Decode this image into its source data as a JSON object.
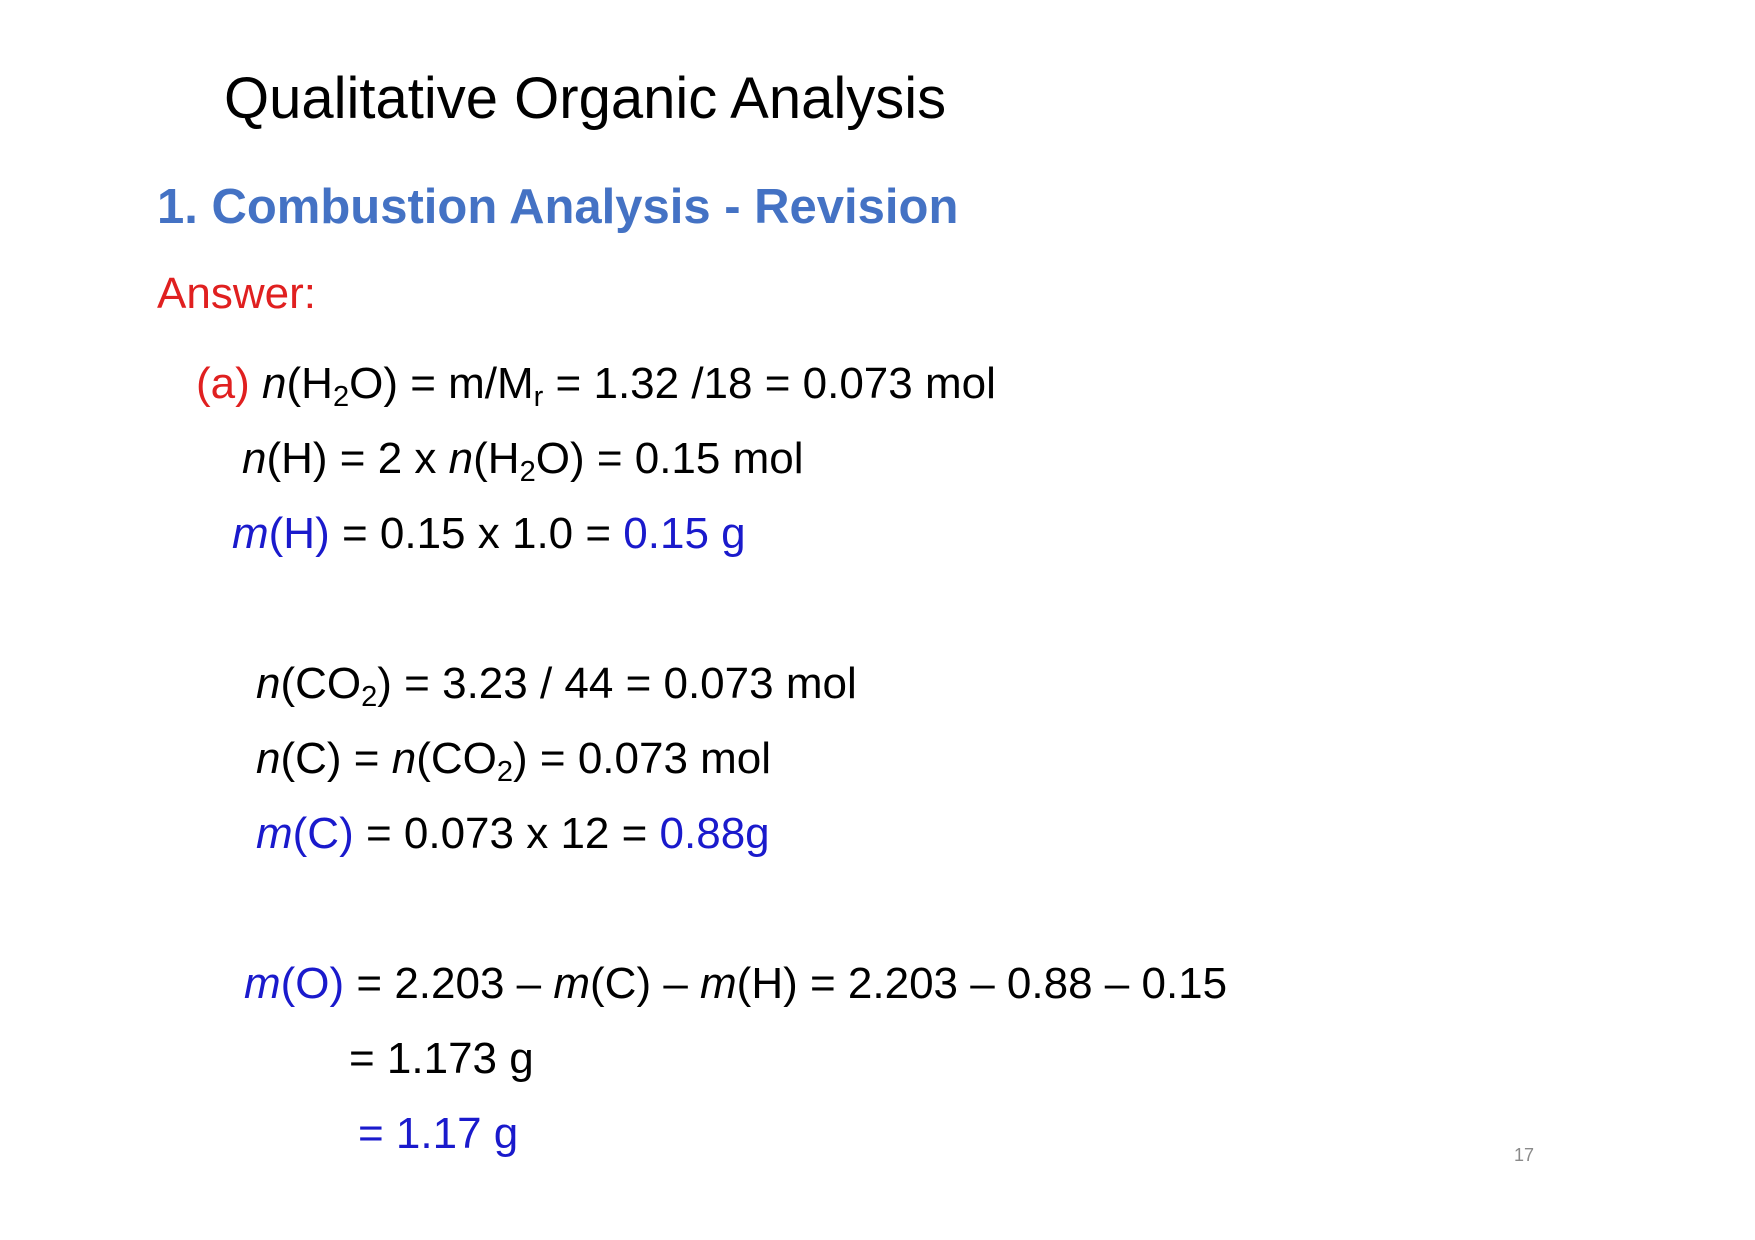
{
  "colors": {
    "heading_blue": "#4472c4",
    "answer_red": "#e02020",
    "result_blue": "#1a1acc",
    "text": "#000000",
    "page_number": "#8a8a8a"
  },
  "slide": {
    "title": "Qualitative Organic Analysis",
    "subtitle": "1. Combustion Analysis -  Revision",
    "answer_label": "Answer:",
    "page_number": "17"
  },
  "part_a": {
    "label": "(a)",
    "line1": {
      "n": "n",
      "open": "(H",
      "sub1": "2",
      "rest1": "O) = m/M",
      "sub2": "r",
      "rest2": " = 1.32 /18 = 0.073 mol"
    },
    "line2": {
      "n1": "n",
      "mid": "(H) = 2 x ",
      "n2": "n",
      "open": "(H",
      "sub": "2",
      "rest": "O) = 0.15 mol"
    },
    "line3": {
      "m": "m",
      "var": "(H)",
      "mid": " = 0.15 x 1.0 = ",
      "result": "0.15 g"
    }
  },
  "carbon": {
    "line1": {
      "n": "n",
      "open": "(CO",
      "sub": "2",
      "rest": ") = 3.23 / 44 = 0.073 mol"
    },
    "line2": {
      "n1": "n",
      "mid": "(C) = ",
      "n2": "n",
      "open": "(CO",
      "sub": "2",
      "rest": ") = 0.073 mol"
    },
    "line3": {
      "m": "m",
      "var": "(C)",
      "mid": " = 0.073 x 12 = ",
      "result": "0.88g"
    }
  },
  "oxygen": {
    "line1": {
      "m1": "m",
      "var": "(O)",
      "a": " = 2.203 – ",
      "m2": "m",
      "b": "(C) – ",
      "m3": "m",
      "c": "(H) = 2.203 – 0.88 – 0.15"
    },
    "line2": "= 1.173 g",
    "line3": "= 1.17 g"
  }
}
